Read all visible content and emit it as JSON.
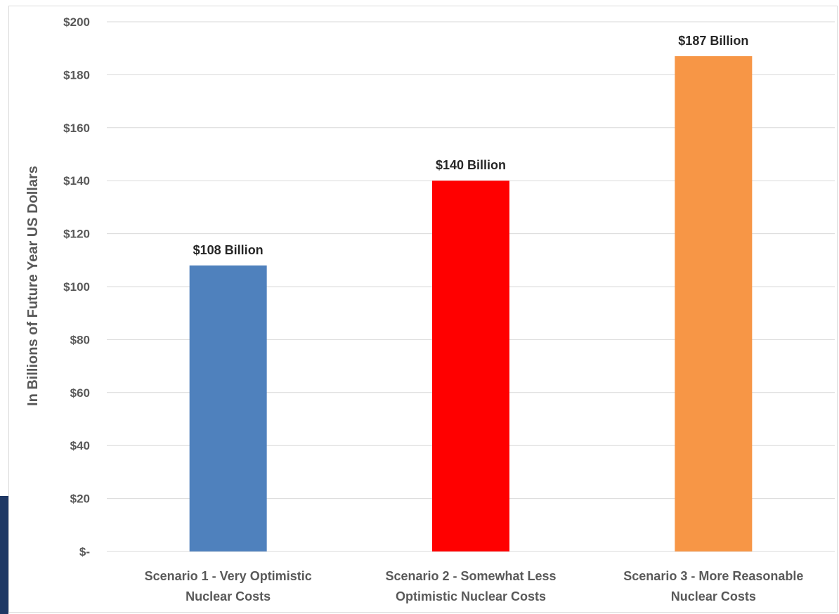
{
  "colors": {
    "gridline": "#d9d9d9",
    "axis_text": "#595959",
    "data_label_text": "#262626",
    "left_accent": "#1f3864"
  },
  "chart_data": {
    "type": "bar",
    "title": "",
    "xlabel": "",
    "ylabel": "In Billions of Future Year US Dollars",
    "ylim": [
      0,
      200
    ],
    "y_ticks": [
      {
        "value": 0,
        "label": "$-"
      },
      {
        "value": 20,
        "label": "$20"
      },
      {
        "value": 40,
        "label": "$40"
      },
      {
        "value": 60,
        "label": "$60"
      },
      {
        "value": 80,
        "label": "$80"
      },
      {
        "value": 100,
        "label": "$100"
      },
      {
        "value": 120,
        "label": "$120"
      },
      {
        "value": 140,
        "label": "$140"
      },
      {
        "value": 160,
        "label": "$160"
      },
      {
        "value": 180,
        "label": "$180"
      },
      {
        "value": 200,
        "label": "$200"
      }
    ],
    "grid": true,
    "legend": "none",
    "categories": [
      [
        "Scenario 1 - Very Optimistic",
        "Nuclear Costs"
      ],
      [
        "Scenario 2 - Somewhat Less",
        "Optimistic Nuclear Costs"
      ],
      [
        "Scenario 3 - More Reasonable",
        "Nuclear Costs"
      ]
    ],
    "values": [
      108,
      140,
      187
    ],
    "bar_colors": [
      "#4f81bd",
      "#ff0000",
      "#f79646"
    ],
    "data_labels": [
      "$108 Billion",
      "$140 Billion",
      "$187 Billion"
    ]
  }
}
